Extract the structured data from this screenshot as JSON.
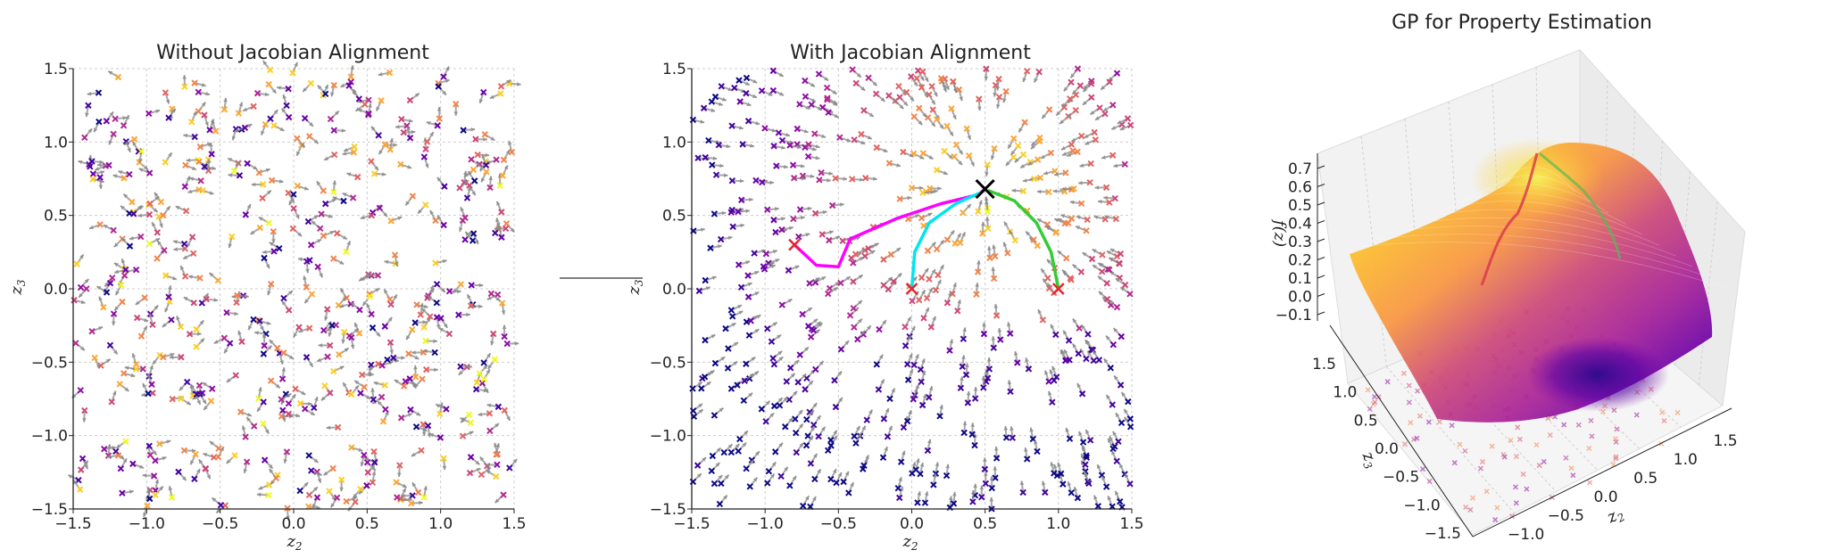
{
  "chart_data": [
    {
      "type": "scatter",
      "title": "Without Jacobian Alignment",
      "xlabel": "z",
      "xlabel_sub": "2",
      "ylabel": "z",
      "ylabel_sub": "3",
      "xlim": [
        -1.5,
        1.5
      ],
      "ylim": [
        -1.5,
        1.5
      ],
      "xticks": [
        "−1.5",
        "−1.0",
        "−0.5",
        "0.0",
        "0.5",
        "1.0",
        "1.5"
      ],
      "yticks": [
        "−1.5",
        "−1.0",
        "−0.5",
        "0.0",
        "0.5",
        "1.0",
        "1.5"
      ],
      "grid": true,
      "markers": "x with gray gradient arrows",
      "colormap": "plasma",
      "gradient_field": "random"
    },
    {
      "type": "scatter",
      "title": "With Jacobian Alignment",
      "xlabel": "z",
      "xlabel_sub": "2",
      "ylabel": "z",
      "ylabel_sub": "3",
      "xlim": [
        -1.5,
        1.5
      ],
      "ylim": [
        -1.5,
        1.5
      ],
      "xticks": [
        "−1.5",
        "−1.0",
        "−0.5",
        "0.0",
        "0.5",
        "1.0",
        "1.5"
      ],
      "yticks": [
        "−1.5",
        "−1.0",
        "−0.5",
        "0.0",
        "0.5",
        "1.0",
        "1.5"
      ],
      "grid": true,
      "markers": "x with gray gradient arrows",
      "colormap": "plasma",
      "gradient_field": "aligned",
      "optimum": [
        0.5,
        0.68
      ],
      "trajectories": [
        {
          "color": "#ff00ff",
          "points": [
            [
              -0.8,
              0.3
            ],
            [
              -0.65,
              0.16
            ],
            [
              -0.5,
              0.15
            ],
            [
              -0.42,
              0.34
            ],
            [
              -0.1,
              0.48
            ],
            [
              0.2,
              0.58
            ],
            [
              0.45,
              0.64
            ],
            [
              0.5,
              0.68
            ]
          ]
        },
        {
          "color": "#00e5ee",
          "points": [
            [
              0.0,
              0.0
            ],
            [
              0.02,
              0.25
            ],
            [
              0.12,
              0.45
            ],
            [
              0.3,
              0.58
            ],
            [
              0.48,
              0.66
            ]
          ]
        },
        {
          "color": "#33cc33",
          "points": [
            [
              1.0,
              0.0
            ],
            [
              0.95,
              0.25
            ],
            [
              0.85,
              0.45
            ],
            [
              0.7,
              0.6
            ],
            [
              0.52,
              0.67
            ]
          ]
        }
      ],
      "start_points": [
        [
          -0.8,
          0.3
        ],
        [
          0.0,
          0.0
        ],
        [
          1.0,
          0.0
        ]
      ]
    },
    {
      "type": "surface3d",
      "title": "GP for Property Estimation",
      "xlabel": "z",
      "xlabel_sub": "2",
      "ylabel": "z",
      "ylabel_sub": "3",
      "zlabel": "f(z)",
      "zticks": [
        "−0.1",
        "0.0",
        "0.1",
        "0.2",
        "0.3",
        "0.4",
        "0.5",
        "0.6",
        "0.7"
      ],
      "xticks": [
        "−1.5",
        "−1.0",
        "−0.5",
        "0.0",
        "0.5",
        "1.0",
        "1.5"
      ],
      "yticks": [
        "−1.5",
        "−1.0",
        "−0.5",
        "0.0",
        "0.5",
        "1.0",
        "1.5"
      ],
      "colormap": "plasma"
    }
  ]
}
